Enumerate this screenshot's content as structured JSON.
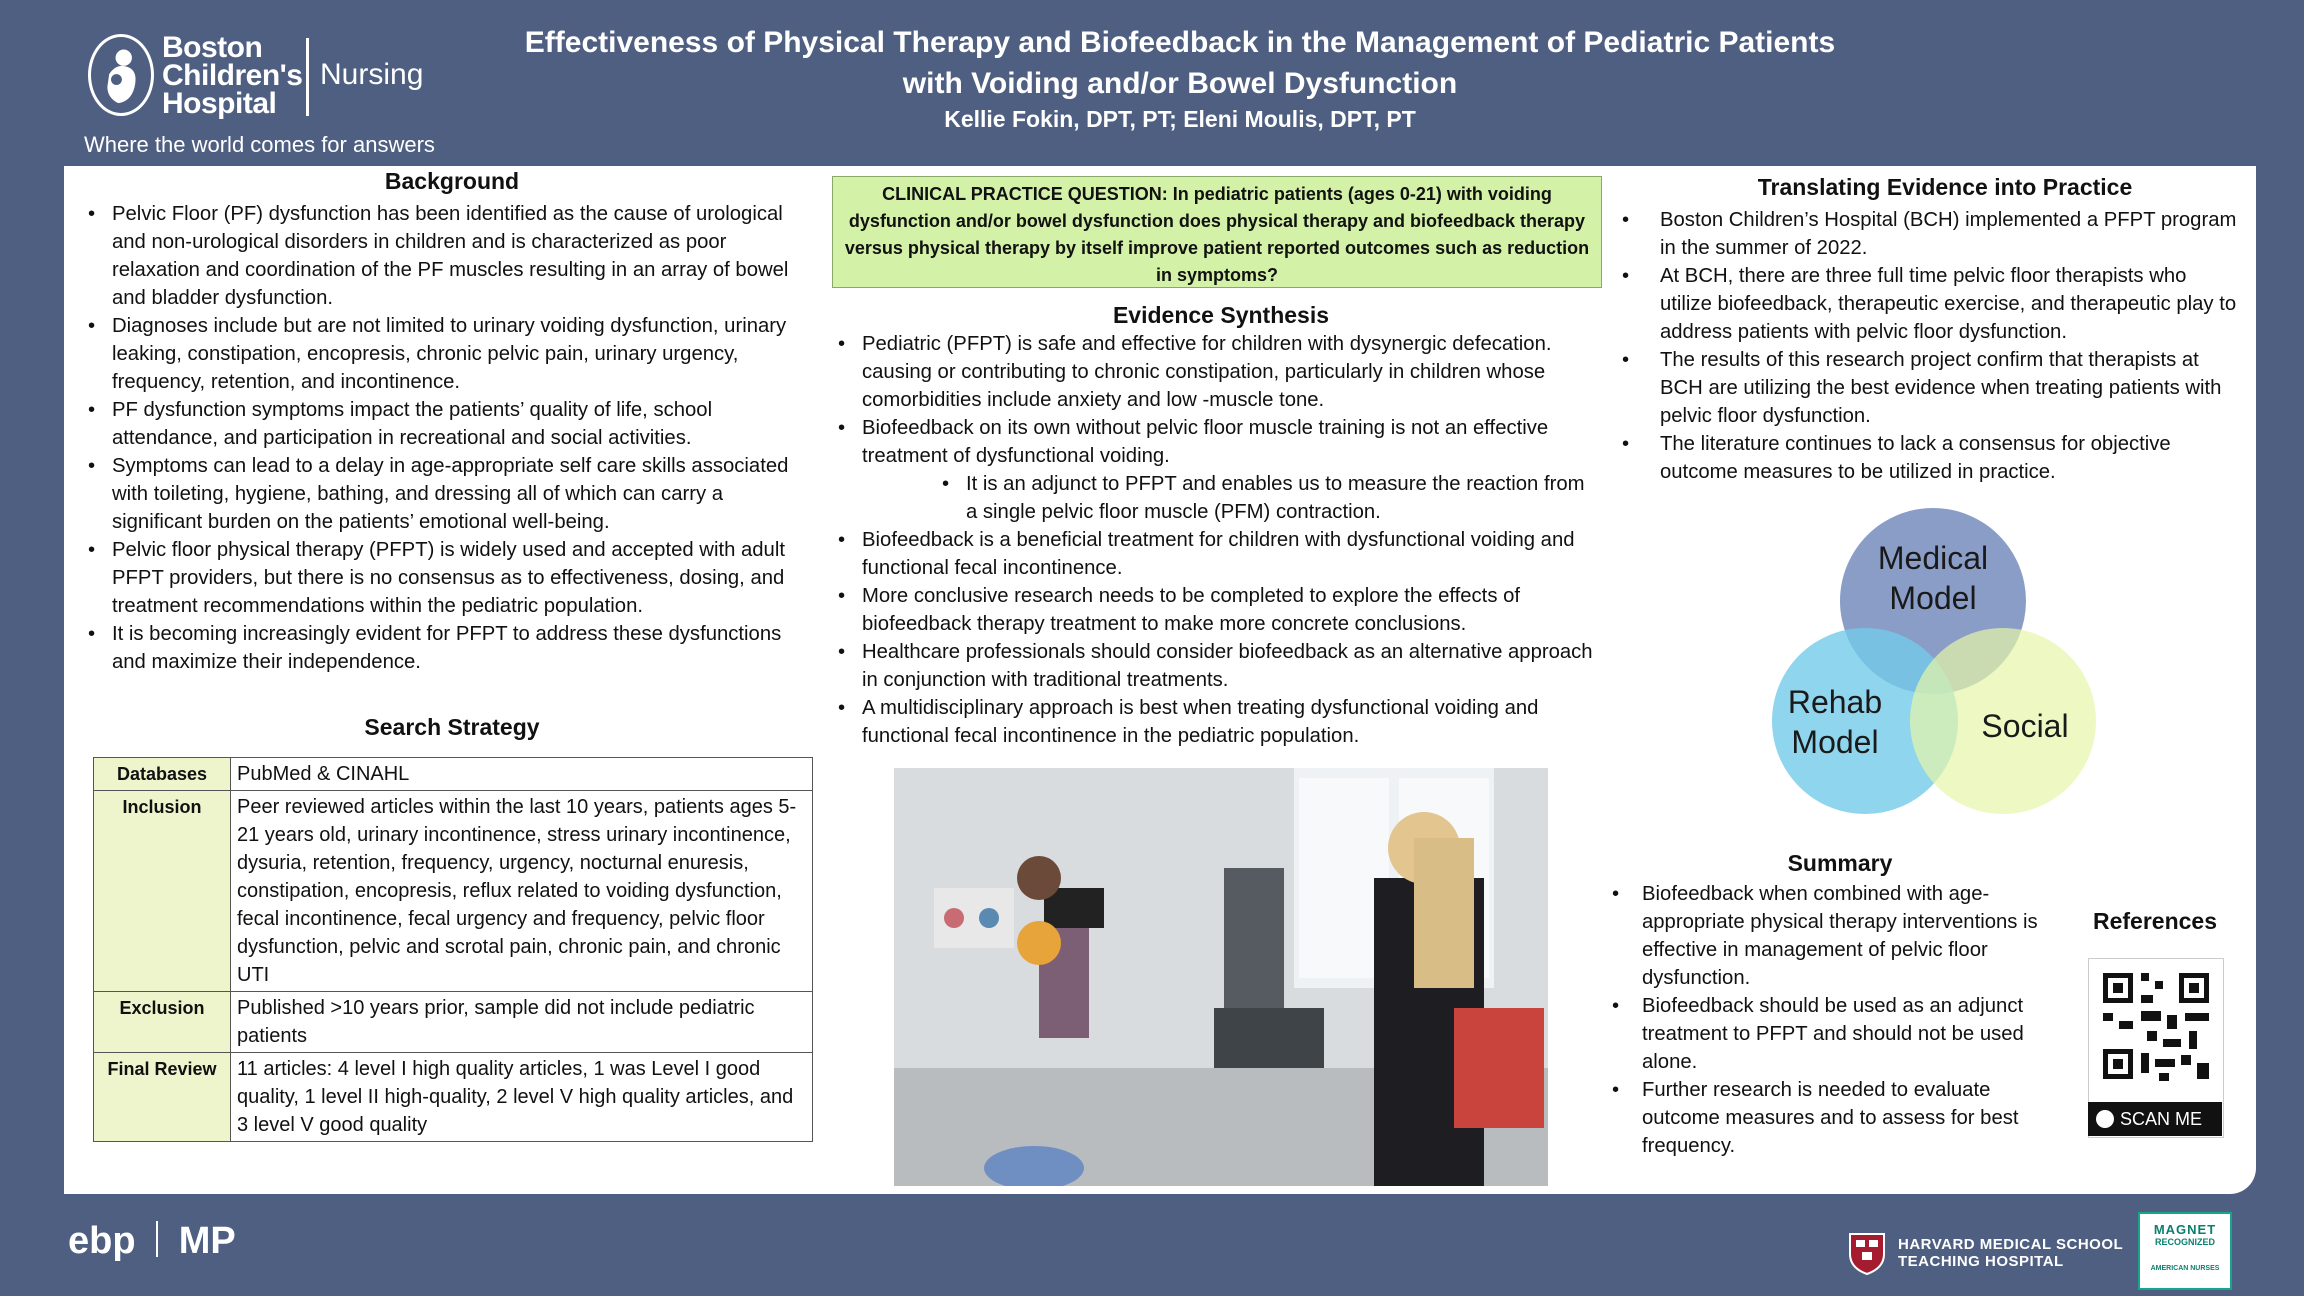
{
  "header": {
    "brand_line1": "Boston",
    "brand_line2": "Children's",
    "brand_line3": "Hospital",
    "nursing": "Nursing",
    "tagline": "Where the world comes for answers",
    "title_line1": "Effectiveness of Physical Therapy and Biofeedback in the Management of Pediatric Patients",
    "title_line2": "with Voiding and/or Bowel Dysfunction",
    "authors": "Kellie Fokin, DPT, PT; Eleni Moulis, DPT, PT"
  },
  "background": {
    "heading": "Background",
    "items": [
      "Pelvic Floor (PF) dysfunction has been identified as the cause of urological and non-urological disorders in children and is characterized as poor relaxation and coordination of the PF muscles resulting in an array of bowel and bladder dysfunction.",
      "Diagnoses include but are not limited to urinary voiding dysfunction, urinary leaking, constipation, encopresis, chronic pelvic pain, urinary urgency, frequency, retention, and incontinence.",
      "PF dysfunction symptoms impact the patients’ quality of life, school attendance, and participation in recreational and social activities.",
      "Symptoms can lead to a delay in age-appropriate self care skills associated with toileting, hygiene, bathing, and dressing all of which can carry a significant burden on the patients’ emotional well-being.",
      "Pelvic floor physical therapy (PFPT) is widely used and accepted with adult PFPT providers, but there is no consensus as to effectiveness, dosing, and treatment recommendations within the pediatric population.",
      "It is becoming increasingly evident for PFPT to address these dysfunctions and maximize their independence."
    ]
  },
  "search": {
    "heading": "Search Strategy",
    "rows": [
      {
        "label": "Databases",
        "value": "PubMed & CINAHL"
      },
      {
        "label": "Inclusion",
        "value": "Peer reviewed articles within the last 10 years, patients ages 5-21 years old, urinary incontinence, stress urinary incontinence, dysuria, retention, frequency, urgency, nocturnal enuresis, constipation, encopresis, reflux related to voiding dysfunction, fecal incontinence, fecal urgency and frequency, pelvic floor dysfunction, pelvic and scrotal pain, chronic pain, and chronic UTI"
      },
      {
        "label": "Exclusion",
        "value": "Published >10 years prior, sample did not include pediatric patients"
      },
      {
        "label": "Final Review",
        "value": "11 articles: 4 level I high quality articles, 1 was Level I good quality, 1 level II high-quality, 2 level V high quality articles, and 3 level V good quality"
      }
    ]
  },
  "cpq": {
    "text": "CLINICAL PRACTICE QUESTION: In pediatric patients (ages 0-21) with voiding dysfunction and/or bowel dysfunction does physical therapy and biofeedback therapy versus physical therapy by itself improve patient reported outcomes such as reduction in symptoms?"
  },
  "evidence": {
    "heading": "Evidence Synthesis",
    "items": [
      "Pediatric (PFPT) is safe and effective for children with dysynergic defecation. causing or contributing to chronic constipation, particularly in children whose comorbidities include anxiety and low -muscle tone.",
      "Biofeedback on its own without pelvic floor muscle training is not an effective treatment of dysfunctional voiding.",
      "It is an adjunct to PFPT and enables us to measure the reaction from a single pelvic floor muscle (PFM) contraction.",
      "Biofeedback is a beneficial treatment for children with dysfunctional voiding and functional fecal incontinence.",
      "More conclusive research needs to be completed to explore the effects of biofeedback therapy treatment to make more concrete conclusions.",
      "Healthcare professionals should consider biofeedback as an alternative approach in conjunction with traditional treatments.",
      "A multidisciplinary approach is best when treating dysfunctional voiding and functional fecal incontinence in the pediatric population."
    ]
  },
  "translating": {
    "heading": "Translating Evidence into Practice",
    "items": [
      "Boston Children’s Hospital (BCH) implemented a PFPT program in the summer of 2022.",
      "At BCH, there are three full time pelvic floor therapists who utilize biofeedback, therapeutic exercise, and therapeutic play to address patients with pelvic floor dysfunction.",
      "The results of this research project confirm that therapists at BCH are utilizing the best evidence when treating patients with pelvic floor dysfunction.",
      "The literature continues to lack a consensus for objective outcome measures to be utilized in practice."
    ]
  },
  "venn": {
    "medical_line1": "Medical",
    "medical_line2": "Model",
    "rehab_line1": "Rehab",
    "rehab_line2": "Model",
    "social": "Social",
    "colors": {
      "medical": "#8095c2",
      "rehab": "#73cbe9",
      "social": "#e5f5a8"
    }
  },
  "summary": {
    "heading": "Summary",
    "items": [
      "Biofeedback when combined with age-appropriate physical therapy interventions is effective in management of pelvic floor dysfunction.",
      "Biofeedback should be used as an adjunct treatment to PFPT and should not be used alone.",
      "Further research is needed to evaluate outcome measures and to assess for best frequency."
    ]
  },
  "references": {
    "heading": "References",
    "scan_label": "SCAN ME"
  },
  "footer": {
    "ebp_label": "ebp",
    "mp_label": "MP",
    "hms_line1": "HARVARD MEDICAL SCHOOL",
    "hms_line2": "TEACHING HOSPITAL",
    "magnet_line1": "MAGNET",
    "magnet_line2": "RECOGNIZED",
    "magnet_line3": "AMERICAN NURSES"
  }
}
